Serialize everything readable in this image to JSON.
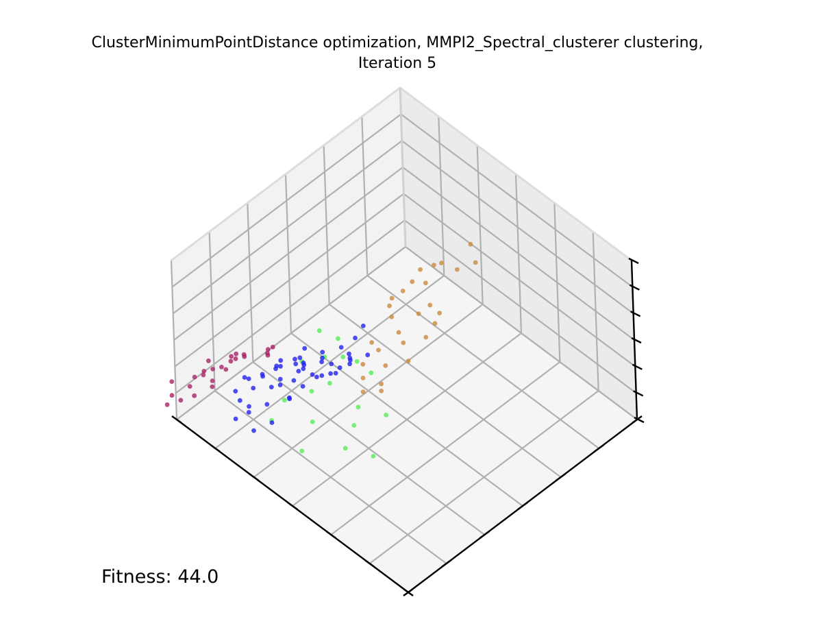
{
  "chart_data": {
    "type": "scatter",
    "projection": "3d",
    "title_line1": "ClusterMinimumPointDistance optimization, MMPI2_Spectral_clusterer clustering,",
    "title_line2": "Iteration 5",
    "xlabel": "",
    "ylabel": "",
    "zlabel": "",
    "grid": true,
    "series": [
      {
        "color": "#c98a40",
        "points": [
          [
            0.28,
            0.58,
            0.95
          ],
          [
            0.3,
            0.62,
            0.9
          ],
          [
            0.36,
            0.6,
            0.9
          ],
          [
            0.42,
            0.56,
            0.95
          ],
          [
            0.5,
            0.62,
            0.85
          ],
          [
            0.48,
            0.64,
            0.8
          ],
          [
            0.52,
            0.66,
            0.8
          ],
          [
            0.55,
            0.62,
            0.85
          ],
          [
            0.4,
            0.5,
            0.75
          ],
          [
            0.33,
            0.5,
            0.8
          ],
          [
            0.6,
            0.6,
            0.7
          ],
          [
            0.58,
            0.56,
            0.7
          ],
          [
            0.62,
            0.64,
            0.65
          ],
          [
            0.45,
            0.45,
            0.7
          ],
          [
            0.66,
            0.58,
            0.6
          ],
          [
            0.55,
            0.5,
            0.7
          ],
          [
            0.63,
            0.52,
            0.6
          ],
          [
            0.7,
            0.6,
            0.55
          ],
          [
            0.38,
            0.42,
            0.65
          ],
          [
            0.5,
            0.44,
            0.65
          ],
          [
            0.7,
            0.52,
            0.5
          ],
          [
            0.6,
            0.46,
            0.55
          ],
          [
            0.74,
            0.56,
            0.5
          ],
          [
            0.66,
            0.48,
            0.5
          ],
          [
            0.45,
            0.4,
            0.6
          ],
          [
            0.72,
            0.62,
            0.55
          ],
          [
            0.44,
            0.52,
            0.9
          ],
          [
            0.58,
            0.68,
            0.8
          ]
        ]
      },
      {
        "color": "#55ee55",
        "points": [
          [
            0.86,
            0.5,
            0.95
          ],
          [
            0.82,
            0.54,
            0.9
          ],
          [
            0.88,
            0.54,
            0.85
          ],
          [
            0.84,
            0.58,
            0.85
          ],
          [
            0.92,
            0.48,
            0.8
          ],
          [
            0.8,
            0.6,
            0.8
          ],
          [
            0.9,
            0.58,
            0.75
          ],
          [
            0.94,
            0.54,
            0.7
          ],
          [
            0.78,
            0.64,
            0.75
          ],
          [
            0.84,
            0.64,
            0.6
          ],
          [
            0.98,
            0.46,
            0.6
          ],
          [
            0.88,
            0.66,
            0.55
          ],
          [
            0.96,
            0.56,
            0.55
          ],
          [
            1.0,
            0.42,
            0.45
          ],
          [
            0.78,
            0.7,
            0.55
          ],
          [
            0.92,
            0.66,
            0.45
          ],
          [
            0.86,
            0.72,
            0.4
          ],
          [
            1.0,
            0.55,
            0.4
          ]
        ]
      },
      {
        "color": "#2222ee",
        "points": [
          [
            0.85,
            0.38,
            0.6
          ],
          [
            0.88,
            0.4,
            0.55
          ],
          [
            0.82,
            0.36,
            0.5
          ],
          [
            0.9,
            0.36,
            0.5
          ],
          [
            0.86,
            0.32,
            0.45
          ],
          [
            0.8,
            0.4,
            0.5
          ],
          [
            0.92,
            0.42,
            0.5
          ],
          [
            0.78,
            0.34,
            0.45
          ],
          [
            0.84,
            0.28,
            0.45
          ],
          [
            0.94,
            0.34,
            0.4
          ],
          [
            0.76,
            0.4,
            0.45
          ],
          [
            0.88,
            0.3,
            0.4
          ],
          [
            0.72,
            0.36,
            0.45
          ],
          [
            0.96,
            0.38,
            0.35
          ],
          [
            0.8,
            0.26,
            0.4
          ],
          [
            0.74,
            0.3,
            0.4
          ],
          [
            0.9,
            0.24,
            0.35
          ],
          [
            0.98,
            0.3,
            0.35
          ],
          [
            0.7,
            0.4,
            0.4
          ],
          [
            0.84,
            0.22,
            0.35
          ],
          [
            0.66,
            0.34,
            0.35
          ],
          [
            0.94,
            0.26,
            0.3
          ],
          [
            0.76,
            0.22,
            0.35
          ],
          [
            0.62,
            0.38,
            0.35
          ],
          [
            1.0,
            0.34,
            0.3
          ],
          [
            0.7,
            0.26,
            0.3
          ],
          [
            0.86,
            0.18,
            0.3
          ],
          [
            0.8,
            0.18,
            0.25
          ],
          [
            0.64,
            0.28,
            0.3
          ],
          [
            0.92,
            0.2,
            0.25
          ],
          [
            0.58,
            0.34,
            0.3
          ],
          [
            0.74,
            0.18,
            0.25
          ],
          [
            0.96,
            0.22,
            0.2
          ],
          [
            0.68,
            0.2,
            0.25
          ],
          [
            0.6,
            0.24,
            0.25
          ],
          [
            0.88,
            0.14,
            0.2
          ],
          [
            0.54,
            0.3,
            0.2
          ],
          [
            0.82,
            0.12,
            0.2
          ],
          [
            0.5,
            0.22,
            0.15
          ],
          [
            0.62,
            0.16,
            0.15
          ],
          [
            0.42,
            0.2,
            0.1
          ],
          [
            0.56,
            0.12,
            0.1
          ],
          [
            0.48,
            0.3,
            0.35
          ],
          [
            0.78,
            0.46,
            0.55
          ],
          [
            0.72,
            0.44,
            0.5
          ],
          [
            0.66,
            0.42,
            0.5
          ],
          [
            0.82,
            0.44,
            0.55
          ],
          [
            0.9,
            0.46,
            0.6
          ],
          [
            0.94,
            0.44,
            0.55
          ],
          [
            0.6,
            0.44,
            0.45
          ]
        ]
      },
      {
        "color": "#aa2266",
        "points": [
          [
            0.8,
            0.1,
            0.3
          ],
          [
            0.86,
            0.08,
            0.25
          ],
          [
            0.76,
            0.06,
            0.2
          ],
          [
            0.84,
            0.04,
            0.2
          ],
          [
            0.9,
            0.06,
            0.2
          ],
          [
            0.7,
            0.1,
            0.2
          ],
          [
            0.94,
            0.1,
            0.25
          ],
          [
            0.78,
            0.02,
            0.15
          ],
          [
            0.88,
            0.0,
            0.15
          ],
          [
            0.96,
            0.04,
            0.15
          ],
          [
            0.74,
            0.0,
            0.1
          ],
          [
            0.82,
            -0.02,
            0.1
          ],
          [
            0.92,
            -0.02,
            0.1
          ],
          [
            0.66,
            0.06,
            0.1
          ],
          [
            0.98,
            0.0,
            0.1
          ],
          [
            0.72,
            -0.04,
            0.05
          ],
          [
            0.86,
            -0.06,
            0.05
          ],
          [
            0.62,
            0.02,
            0.05
          ],
          [
            1.0,
            -0.04,
            0.05
          ],
          [
            0.8,
            -0.08,
            0.0
          ],
          [
            0.94,
            -0.08,
            0.0
          ],
          [
            0.68,
            -0.06,
            0.0
          ],
          [
            0.58,
            0.0,
            0.0
          ],
          [
            0.9,
            -0.12,
            0.0
          ],
          [
            0.76,
            -0.1,
            0.0
          ]
        ]
      }
    ]
  },
  "fitness_text": "Fitness: 44.0"
}
